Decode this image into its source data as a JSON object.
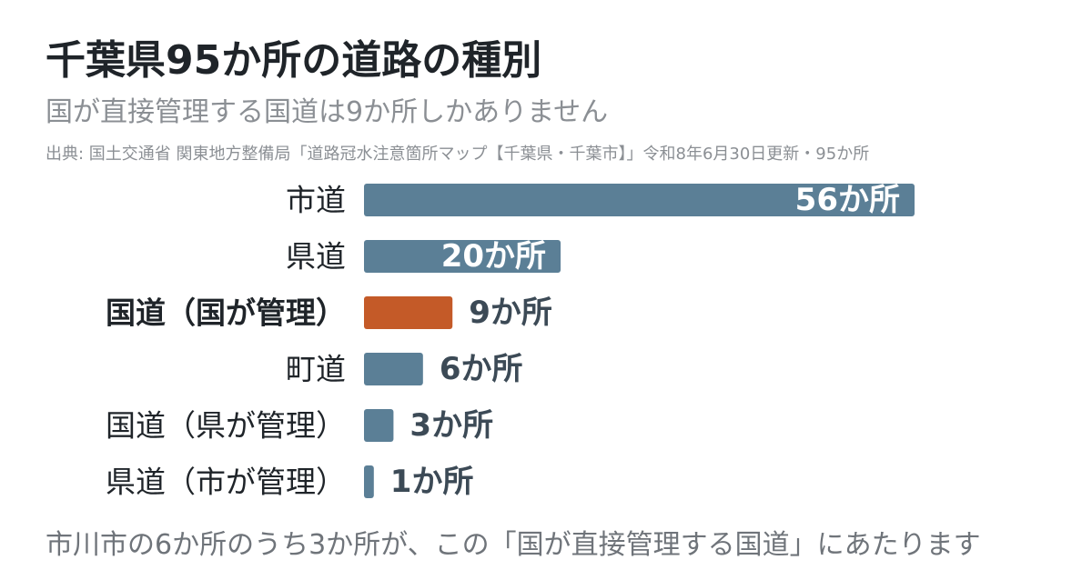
{
  "header": {
    "title": "千葉県95か所の道路の種別",
    "subtitle": "国が直接管理する国道は9か所しかありません",
    "source": "出典: 国土交通省 関東地方整備局「道路冠水注意箇所マップ【千葉県・千葉市】」令和8年6月30日更新・95か所"
  },
  "footnote": "市川市の6か所のうち3か所が、この「国が直接管理する国道」にあたります",
  "colors": {
    "default_bar": "#5b7f96",
    "highlight_bar": "#c45a28",
    "label_text": "#1f2429",
    "value_text": "#3c4a56",
    "inside_value_text": "#ffffff"
  },
  "chart_data": {
    "type": "bar",
    "orientation": "horizontal",
    "title": "千葉県95か所の道路の種別",
    "categories": [
      "市道",
      "県道",
      "国道（国が管理）",
      "町道",
      "国道（県が管理）",
      "県道（市が管理）"
    ],
    "values": [
      56,
      20,
      9,
      6,
      3,
      1
    ],
    "value_labels": [
      "56か所",
      "20か所",
      "9か所",
      "6か所",
      "3か所",
      "1か所"
    ],
    "highlight_index": 2,
    "xlim": [
      0,
      56
    ],
    "grid": false,
    "legend": "none"
  }
}
